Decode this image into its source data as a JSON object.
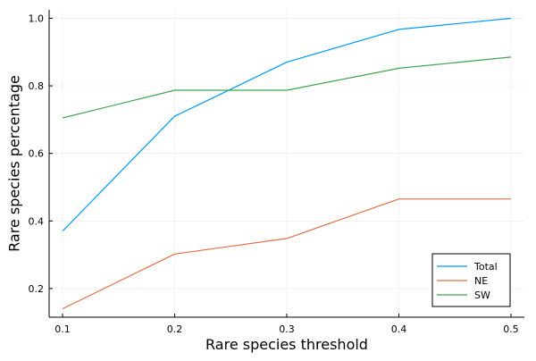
{
  "chart_data": {
    "type": "line",
    "title": "",
    "xlabel": "Rare species threshold",
    "ylabel": "Rare species percentage",
    "x": [
      0.1,
      0.2,
      0.3,
      0.4,
      0.5
    ],
    "xlim": [
      0.088,
      0.512
    ],
    "ylim": [
      0.115,
      1.025
    ],
    "x_ticks": [
      0.1,
      0.2,
      0.3,
      0.4,
      0.5
    ],
    "x_tick_labels": [
      "0.1",
      "0.2",
      "0.3",
      "0.4",
      "0.5"
    ],
    "y_ticks": [
      0.2,
      0.4,
      0.6,
      0.8,
      1.0
    ],
    "y_tick_labels": [
      "0.2",
      "0.4",
      "0.6",
      "0.8",
      "1.0"
    ],
    "grid": true,
    "legend_position": "bottom-right",
    "series": [
      {
        "name": "Total",
        "color": "#009AFA",
        "values": [
          0.37,
          0.71,
          0.87,
          0.967,
          1.0
        ]
      },
      {
        "name": "NE",
        "color": "#E26F46",
        "values": [
          0.14,
          0.302,
          0.348,
          0.465,
          0.465
        ]
      },
      {
        "name": "SW",
        "color": "#3EA44E",
        "values": [
          0.705,
          0.787,
          0.787,
          0.852,
          0.885
        ]
      }
    ]
  }
}
